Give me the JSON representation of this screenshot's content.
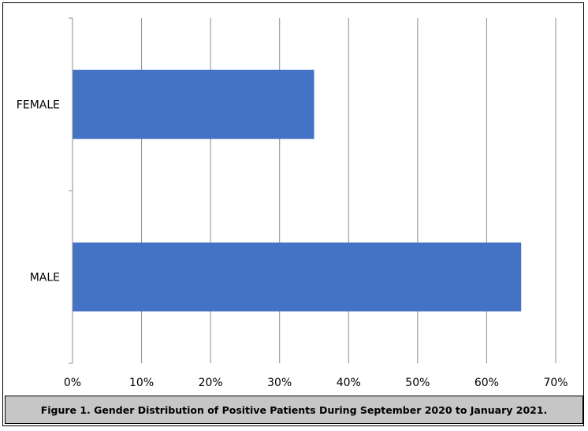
{
  "caption": "Figure 1. Gender Distribution of Positive Patients During September 2020 to January 2021.",
  "chart_data": {
    "type": "bar",
    "orientation": "horizontal",
    "categories": [
      "FEMALE",
      "MALE"
    ],
    "values": [
      35,
      65
    ],
    "xlim": [
      0,
      70
    ],
    "xticks": [
      "0%",
      "10%",
      "20%",
      "30%",
      "40%",
      "50%",
      "60%",
      "70%"
    ],
    "bar_color": "#4472c4",
    "grid": true,
    "legend": "none"
  }
}
